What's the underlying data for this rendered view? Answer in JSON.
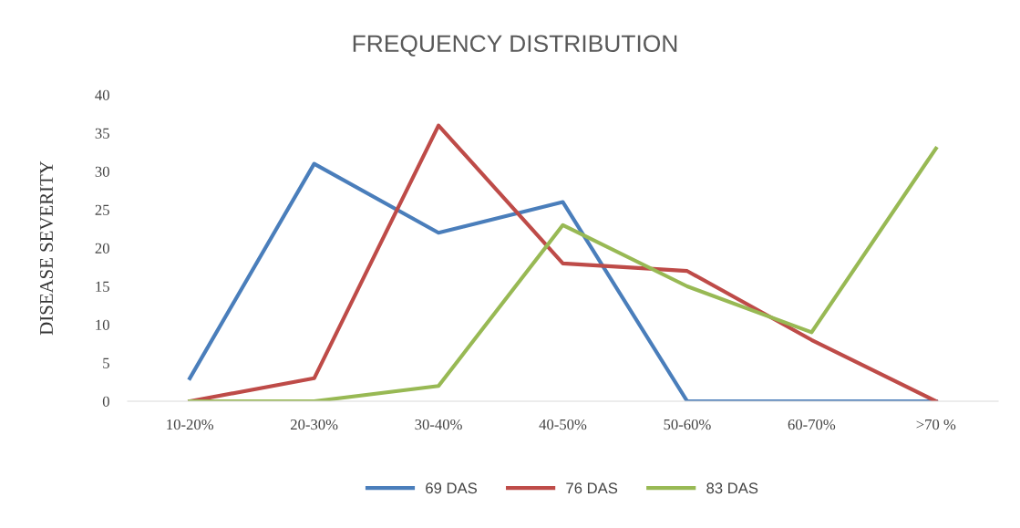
{
  "chart_data": {
    "type": "line",
    "title": "FREQUENCY DISTRIBUTION",
    "ylabel": "DISEASE SEVERITY",
    "categories": [
      "10-20%",
      "20-30%",
      "30-40%",
      "40-50%",
      "50-60%",
      "60-70%",
      ">70 %"
    ],
    "series": [
      {
        "name": "69 DAS",
        "color": "#4a7ebb",
        "values": [
          3,
          31,
          22,
          26,
          0,
          0,
          0
        ]
      },
      {
        "name": "76 DAS",
        "color": "#be4b48",
        "values": [
          0,
          3,
          36,
          18,
          17,
          8,
          0
        ]
      },
      {
        "name": "83 DAS",
        "color": "#98b954",
        "values": [
          0,
          0,
          2,
          23,
          15,
          9,
          33
        ]
      }
    ],
    "ylim": [
      0,
      40
    ],
    "yticks": [
      0,
      5,
      10,
      15,
      20,
      25,
      30,
      35,
      40
    ],
    "grid": false,
    "legend": "bottom",
    "marker": "none",
    "line_style": "solid"
  }
}
